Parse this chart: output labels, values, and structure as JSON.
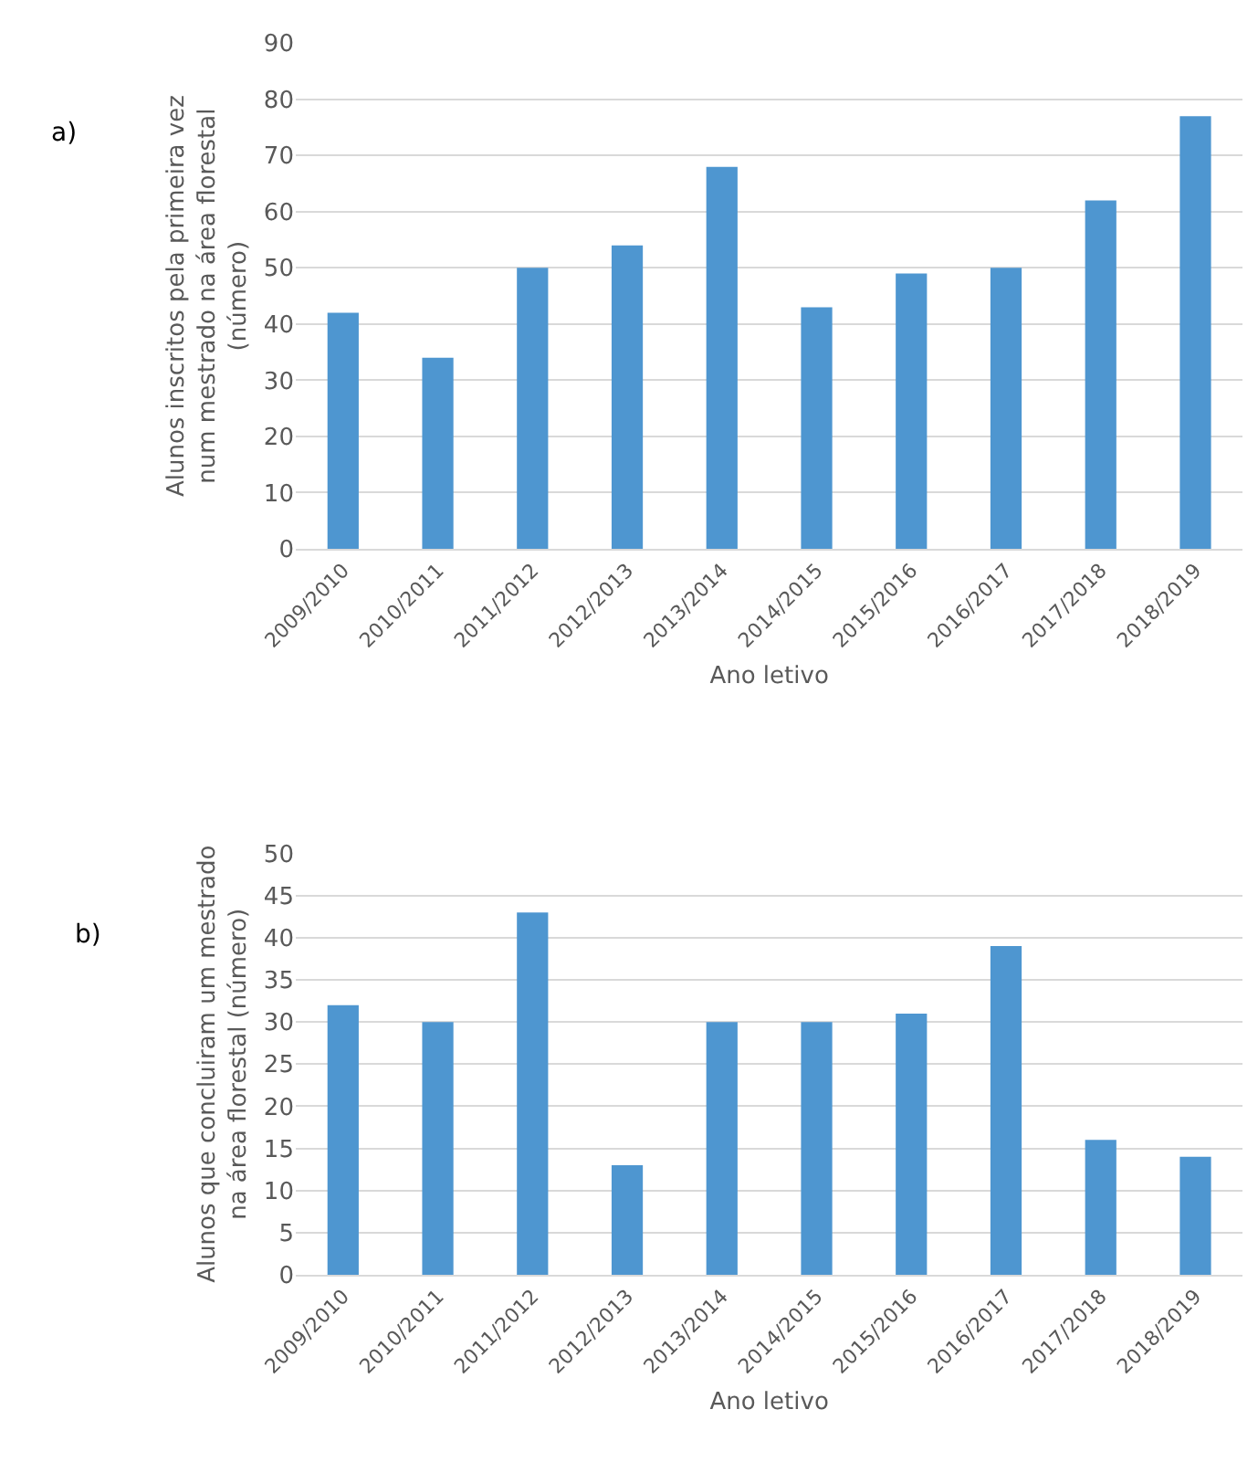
{
  "chart_data": [
    {
      "type": "bar",
      "annotations": [
        "a)"
      ],
      "categories": [
        "2009/2010",
        "2010/2011",
        "2011/2012",
        "2012/2013",
        "2013/2014",
        "2014/2015",
        "2015/2016",
        "2016/2017",
        "2017/2018",
        "2018/2019"
      ],
      "values": [
        42,
        34,
        50,
        54,
        68,
        43,
        49,
        50,
        62,
        77
      ],
      "color": "#4e96d0",
      "xlabel": "Ano letivo",
      "ylabel": "Alunos inscritos pela primeira vez num mestrado na área florestal (número)",
      "ylim": [
        0,
        90
      ],
      "yticks": [
        0,
        10,
        20,
        30,
        40,
        50,
        60,
        70,
        80,
        90
      ],
      "grid": "y"
    },
    {
      "type": "bar",
      "annotations": [
        "b)"
      ],
      "categories": [
        "2009/2010",
        "2010/2011",
        "2011/2012",
        "2012/2013",
        "2013/2014",
        "2014/2015",
        "2015/2016",
        "2016/2017",
        "2017/2018",
        "2018/2019"
      ],
      "values": [
        32,
        30,
        43,
        13,
        30,
        30,
        31,
        39,
        16,
        14
      ],
      "color": "#4e96d0",
      "xlabel": "Ano letivo",
      "ylabel": "Alunos que concluiram um mestrado na área florestal (número)",
      "ylim": [
        0,
        50
      ],
      "yticks": [
        0,
        5,
        10,
        15,
        20,
        25,
        30,
        35,
        40,
        45,
        50
      ],
      "grid": "y"
    }
  ]
}
